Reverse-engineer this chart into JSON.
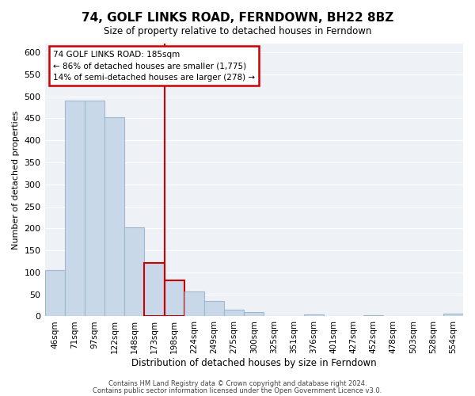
{
  "title": "74, GOLF LINKS ROAD, FERNDOWN, BH22 8BZ",
  "subtitle": "Size of property relative to detached houses in Ferndown",
  "xlabel": "Distribution of detached houses by size in Ferndown",
  "ylabel": "Number of detached properties",
  "bar_labels": [
    "46sqm",
    "71sqm",
    "97sqm",
    "122sqm",
    "148sqm",
    "173sqm",
    "198sqm",
    "224sqm",
    "249sqm",
    "275sqm",
    "300sqm",
    "325sqm",
    "351sqm",
    "376sqm",
    "401sqm",
    "427sqm",
    "452sqm",
    "478sqm",
    "503sqm",
    "528sqm",
    "554sqm"
  ],
  "bar_values": [
    105,
    490,
    490,
    453,
    202,
    122,
    82,
    57,
    35,
    16,
    9,
    1,
    0,
    5,
    0,
    0,
    3,
    0,
    0,
    0,
    6
  ],
  "bar_color": "#c8d8e8",
  "bar_edge_color": "#a0b8cc",
  "highlight_indices": [
    5,
    6
  ],
  "highlight_bar_edge_color": "#cc0000",
  "vline_x": 5.5,
  "vline_color": "#cc0000",
  "ylim": [
    0,
    620
  ],
  "yticks": [
    0,
    50,
    100,
    150,
    200,
    250,
    300,
    350,
    400,
    450,
    500,
    550,
    600
  ],
  "annotation_title": "74 GOLF LINKS ROAD: 185sqm",
  "annotation_line1": "← 86% of detached houses are smaller (1,775)",
  "annotation_line2": "14% of semi-detached houses are larger (278) →",
  "box_color": "#cc0000",
  "footer_line1": "Contains HM Land Registry data © Crown copyright and database right 2024.",
  "footer_line2": "Contains public sector information licensed under the Open Government Licence v3.0.",
  "background_color": "#eef2f7",
  "plot_background": "#ffffff"
}
